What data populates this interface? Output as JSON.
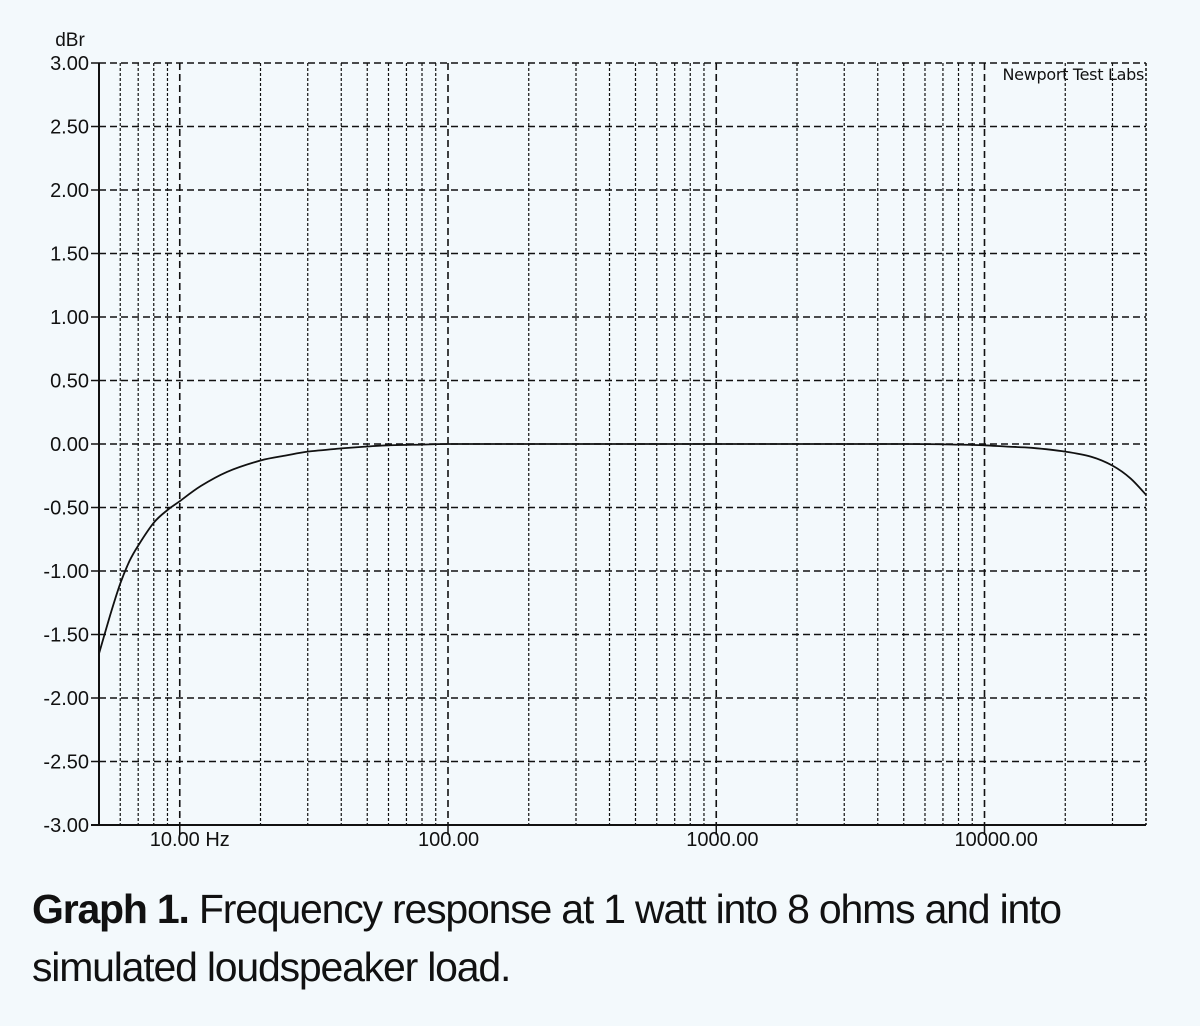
{
  "chart_data": {
    "type": "line",
    "title": "",
    "ylabel": "dBr",
    "xlabel": "Hz",
    "xscale": "log",
    "xlim": [
      5,
      40000
    ],
    "ylim": [
      -3.0,
      3.0
    ],
    "grid": true,
    "watermark": "Newport Test Labs",
    "y_ticks": [
      "3.00",
      "2.50",
      "2.00",
      "1.50",
      "1.00",
      "0.50",
      "0.00",
      "-0.50",
      "-1.00",
      "-1.50",
      "-2.00",
      "-2.50",
      "-3.00"
    ],
    "x_tick_labels": [
      {
        "value": 10,
        "label": "10.00 Hz"
      },
      {
        "value": 100,
        "label": "100.00"
      },
      {
        "value": 1000,
        "label": "1000.00"
      },
      {
        "value": 10000,
        "label": "10000.00"
      }
    ],
    "series": [
      {
        "name": "Frequency response",
        "x": [
          5,
          5.5,
          6,
          6.5,
          7,
          8,
          9,
          10,
          12,
          15,
          20,
          25,
          30,
          40,
          50,
          60,
          80,
          100,
          200,
          500,
          1000,
          2000,
          5000,
          8000,
          10000,
          12000,
          15000,
          20000,
          25000,
          30000,
          35000,
          40000
        ],
        "values": [
          -1.65,
          -1.35,
          -1.1,
          -0.92,
          -0.8,
          -0.62,
          -0.52,
          -0.45,
          -0.33,
          -0.22,
          -0.13,
          -0.09,
          -0.06,
          -0.035,
          -0.02,
          -0.01,
          -0.005,
          0.0,
          0.0,
          0.0,
          0.0,
          0.0,
          0.0,
          -0.005,
          -0.01,
          -0.02,
          -0.03,
          -0.06,
          -0.1,
          -0.17,
          -0.27,
          -0.4
        ]
      }
    ]
  },
  "caption": {
    "label": "Graph 1.",
    "text": " Frequency response at 1 watt into 8 ohms and into simulated loudspeaker load."
  }
}
